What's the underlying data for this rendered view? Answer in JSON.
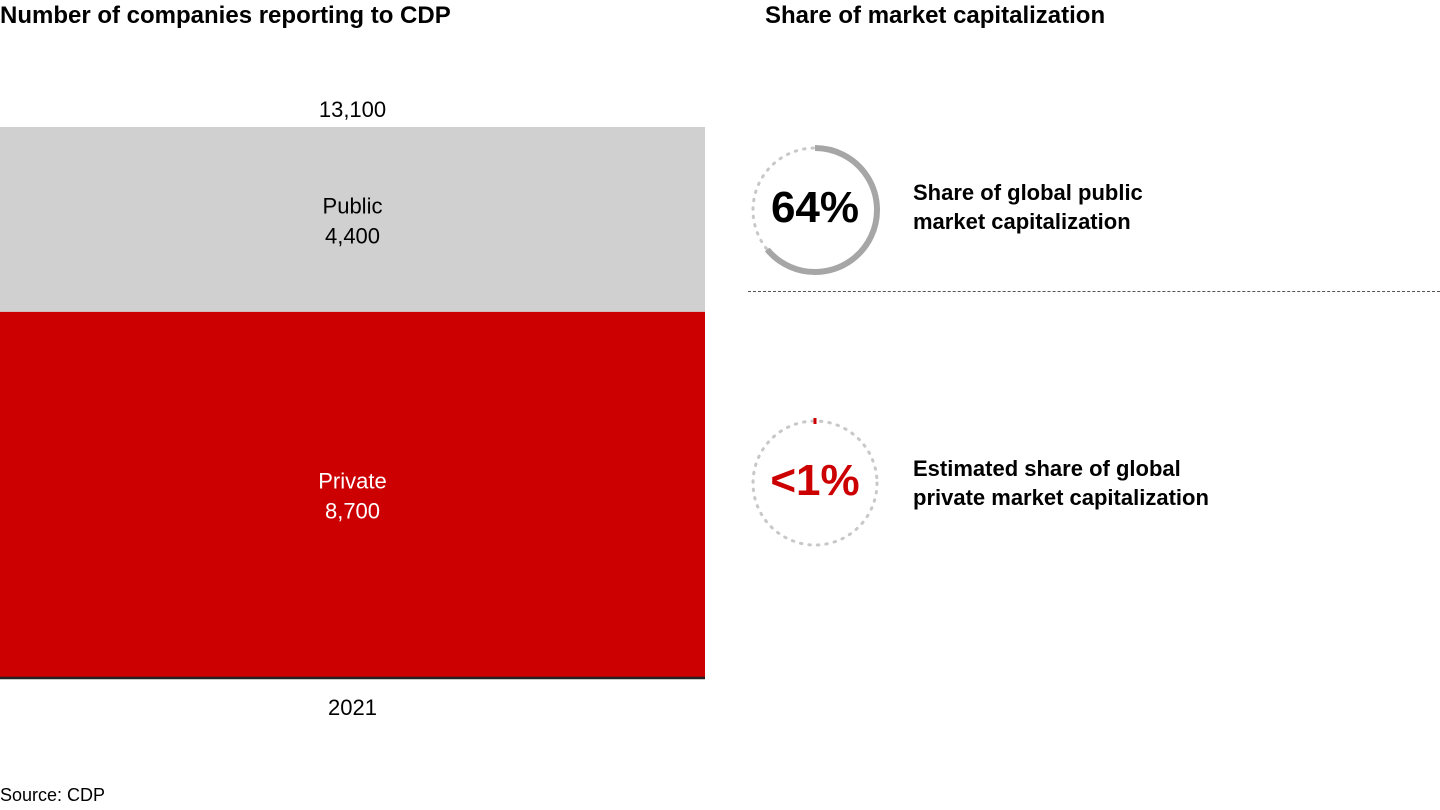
{
  "chart_data": [
    {
      "type": "bar",
      "title": "Number of companies reporting to CDP",
      "categories": [
        "2021"
      ],
      "stacked": true,
      "series": [
        {
          "name": "Private",
          "values": [
            8700
          ],
          "color": "#CC0000",
          "label_color": "#FFFFFF"
        },
        {
          "name": "Public",
          "values": [
            4400
          ],
          "color": "#D0D0D0",
          "label_color": "#000000"
        }
      ],
      "total_labels": [
        "13,100"
      ],
      "value_labels": {
        "Private": "8,700",
        "Public": "4,400"
      },
      "xlabel": "",
      "ylabel": "",
      "ylim": [
        0,
        13100
      ],
      "grid": false
    },
    {
      "type": "pie",
      "title": "Share of market capitalization",
      "items": [
        {
          "label": "Share of global public market capitalization",
          "value": 64,
          "display": "64%",
          "color": "#A6A6A6",
          "text_color": "#000000"
        },
        {
          "label": "Estimated share of global private market capitalization",
          "value": 0.5,
          "display": "<1%",
          "color": "#CC0000",
          "text_color": "#CC0000"
        }
      ]
    }
  ],
  "left_title": "Number of companies reporting to CDP",
  "right_title": "Share of market capitalization",
  "descriptions": [
    "Share of global public\nmarket capitalization",
    "Estimated share of global\nprivate market capitalization"
  ],
  "source": "Source: CDP"
}
